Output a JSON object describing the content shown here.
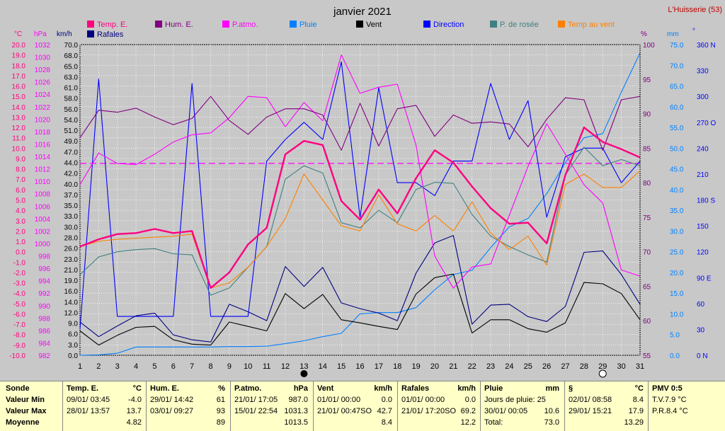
{
  "header": {
    "title": "janvier 2021",
    "station": "L'Huisserie (53)"
  },
  "colors": {
    "temp": "#ff0080",
    "hum": "#800080",
    "patmo": "#ff00ff",
    "pluie": "#0080ff",
    "vent": "#000000",
    "direction": "#0000ff",
    "rosee": "#408080",
    "tvent": "#ff8000",
    "rafales": "#000080",
    "moyenne_line": "#ff00ff",
    "grid": "#ffffff",
    "plot_bg": "#c8c8c8"
  },
  "axes": {
    "temp": {
      "unit": "°C",
      "ylim": [
        -10,
        20
      ],
      "ticks": [
        "20.0",
        "19.0",
        "18.0",
        "17.0",
        "16.0",
        "15.0",
        "14.0",
        "13.0",
        "12.0",
        "11.0",
        "10.0",
        "9.0",
        "8.0",
        "7.0",
        "6.0",
        "5.0",
        "4.0",
        "3.0",
        "2.0",
        "1.0",
        "0.0",
        "-1.0",
        "-2.0",
        "-3.0",
        "-4.0",
        "-5.0",
        "-6.0",
        "-7.0",
        "-8.0",
        "-9.0",
        "-10.0"
      ]
    },
    "hpa": {
      "unit": "hPa",
      "ylim": [
        982,
        1033
      ],
      "ticks": [
        "1032",
        "1030",
        "1028",
        "1026",
        "1024",
        "1022",
        "1020",
        "1018",
        "1016",
        "1014",
        "1012",
        "1010",
        "1008",
        "1006",
        "1004",
        "1002",
        "1000",
        "998",
        "996",
        "994",
        "992",
        "990",
        "988",
        "986",
        "984",
        "982"
      ]
    },
    "kmh": {
      "unit": "km/h",
      "ylim": [
        0,
        70
      ],
      "ticks": [
        "70.0",
        "68.0",
        "65.0",
        "63.0",
        "61.0",
        "58.0",
        "56.0",
        "54.0",
        "51.0",
        "49.0",
        "47.0",
        "44.0",
        "42.0",
        "40.0",
        "37.0",
        "35.0",
        "33.0",
        "30.0",
        "28.0",
        "26.0",
        "23.0",
        "21.0",
        "19.0",
        "16.0",
        "14.0",
        "12.0",
        "9.0",
        "6.0",
        "3.0",
        "0.0"
      ]
    },
    "hum": {
      "unit": "%",
      "ylim": [
        55,
        100
      ],
      "ticks": [
        "100",
        "95",
        "90",
        "85",
        "80",
        "75",
        "70",
        "65",
        "60",
        "55"
      ]
    },
    "mm": {
      "unit": "mm",
      "ylim": [
        0,
        75
      ],
      "ticks": [
        "75.0",
        "70.0",
        "65.0",
        "60.0",
        "55.0",
        "50.0",
        "45.0",
        "40.0",
        "35.0",
        "30.0",
        "25.0",
        "20.0",
        "15.0",
        "10.0",
        "5.0",
        "0.0"
      ]
    },
    "dir": {
      "unit": "°",
      "ylim": [
        0,
        360
      ],
      "ticks": [
        "360 N",
        "330",
        "300",
        "270 O",
        "240",
        "210",
        "180 S",
        "150",
        "120",
        "90 E",
        "60",
        "30",
        "0 N"
      ]
    },
    "x": {
      "ticks": [
        "1",
        "2",
        "3",
        "4",
        "5",
        "6",
        "7",
        "8",
        "9",
        "10",
        "11",
        "12",
        "13",
        "14",
        "15",
        "16",
        "17",
        "18",
        "19",
        "20",
        "21",
        "22",
        "23",
        "24",
        "25",
        "26",
        "27",
        "28",
        "29",
        "30",
        "31"
      ]
    }
  },
  "legend": {
    "temp": "Temp. E.",
    "rafales": "Rafales",
    "hum": "Hum. E.",
    "patmo": "P.atmo.",
    "pluie": "Pluie",
    "vent": "Vent",
    "direction": "Direction",
    "rosee": "P. de rosée",
    "tvent": "Temp au vent"
  },
  "chart_data": {
    "type": "line",
    "title": "janvier 2021",
    "x": [
      1,
      2,
      3,
      4,
      5,
      6,
      7,
      8,
      9,
      10,
      11,
      12,
      13,
      14,
      15,
      16,
      17,
      18,
      19,
      20,
      21,
      22,
      23,
      24,
      25,
      26,
      27,
      28,
      29,
      30,
      31
    ],
    "grid": true,
    "pressure_mean_line_hpa": 1013.5,
    "moon_markers": [
      {
        "day": 13,
        "phase": "new"
      },
      {
        "day": 29,
        "phase": "full"
      }
    ],
    "series": [
      {
        "key": "temp",
        "name": "Temp. E.",
        "axis": "temp",
        "values": [
          0.5,
          1.2,
          1.7,
          1.8,
          2.2,
          1.8,
          2.0,
          -3.5,
          -2.0,
          0.7,
          2.3,
          9.4,
          10.7,
          10.3,
          4.9,
          3.1,
          6.0,
          3.7,
          7.1,
          9.8,
          8.6,
          6.3,
          4.2,
          2.7,
          2.8,
          0.8,
          7.4,
          12.0,
          10.6,
          9.9,
          9.1
        ]
      },
      {
        "key": "tvent",
        "name": "Temp au vent",
        "axis": "temp",
        "values": [
          0.5,
          1.0,
          1.2,
          1.3,
          1.4,
          1.5,
          1.7,
          -3.5,
          -3.0,
          -1.5,
          0.5,
          3.2,
          7.5,
          5.0,
          2.5,
          2.0,
          5.5,
          2.7,
          2.0,
          3.5,
          2.0,
          4.8,
          1.8,
          0.2,
          1.5,
          -1.3,
          6.5,
          7.5,
          6.2,
          6.2,
          7.8
        ]
      },
      {
        "key": "rosee",
        "name": "P. de rosée",
        "axis": "temp",
        "values": [
          -2.2,
          -0.5,
          0.0,
          0.2,
          0.3,
          -0.2,
          -0.3,
          -4.2,
          -3.5,
          -1.5,
          0.5,
          7.0,
          8.3,
          7.6,
          2.8,
          2.3,
          4.0,
          2.8,
          6.0,
          6.7,
          6.6,
          3.6,
          1.5,
          0.5,
          -0.3,
          -1.0,
          7.4,
          10.1,
          8.3,
          8.9,
          8.3
        ]
      },
      {
        "key": "hum",
        "name": "Hum. E.",
        "axis": "hum",
        "values": [
          86.5,
          90.5,
          90.2,
          90.8,
          89.5,
          88.4,
          89.3,
          92.5,
          89.0,
          87.0,
          89.5,
          90.7,
          90.7,
          89.8,
          84.7,
          91.5,
          85.3,
          90.7,
          91.2,
          86.7,
          89.8,
          88.6,
          88.8,
          88.5,
          85.2,
          89.2,
          92.3,
          92.0,
          84.7,
          92.0,
          92.5
        ]
      },
      {
        "key": "patmo",
        "name": "P.atmo.",
        "axis": "hpa",
        "values": [
          1010.0,
          1015.2,
          1013.5,
          1013.3,
          1015.0,
          1017.0,
          1018.2,
          1018.5,
          1021.0,
          1024.5,
          1024.3,
          1019.5,
          1023.5,
          1020.5,
          1031.3,
          1025.0,
          1026.0,
          1026.5,
          1016.5,
          998.3,
          993.0,
          996.5,
          997.0,
          1005.0,
          1013.0,
          1020.0,
          1015.0,
          1010.0,
          1007.0,
          996.0,
          995.0
        ]
      },
      {
        "key": "pluie",
        "name": "Pluie",
        "axis": "mm",
        "values": [
          0.0,
          0.1,
          0.5,
          2.0,
          2.0,
          2.0,
          2.0,
          2.0,
          2.1,
          2.1,
          2.2,
          2.8,
          3.5,
          4.5,
          5.3,
          10.0,
          10.3,
          10.3,
          11.5,
          15.8,
          19.5,
          20.5,
          26.0,
          31.0,
          33.0,
          39.0,
          46.5,
          52.5,
          53.5,
          63.5,
          73.0
        ]
      },
      {
        "key": "vent",
        "name": "Vent",
        "axis": "kmh",
        "values": [
          5.5,
          2.3,
          4.5,
          6.3,
          6.5,
          3.5,
          2.5,
          2.3,
          7.5,
          6.5,
          5.5,
          13.9,
          10.5,
          13.7,
          8.0,
          7.3,
          6.5,
          5.8,
          13.8,
          17.5,
          18.3,
          5.0,
          8.0,
          8.0,
          6.0,
          5.2,
          7.3,
          16.4,
          16.1,
          13.9,
          8.0
        ]
      },
      {
        "key": "rafales",
        "name": "Rafales",
        "axis": "kmh",
        "values": [
          7.5,
          4.2,
          6.6,
          8.9,
          9.5,
          4.6,
          3.5,
          3.0,
          11.5,
          9.8,
          7.8,
          20.0,
          15.5,
          19.8,
          11.8,
          10.5,
          9.5,
          7.8,
          18.5,
          25.3,
          27.0,
          7.0,
          11.3,
          11.5,
          8.7,
          7.6,
          11.0,
          23.2,
          23.5,
          18.2,
          11.5
        ]
      },
      {
        "key": "direction",
        "name": "Direction",
        "axis": "dir",
        "values": [
          30,
          320,
          45,
          45,
          45,
          45,
          315,
          45,
          45,
          45,
          225,
          250,
          270,
          250,
          340,
          160,
          310,
          200,
          200,
          185,
          225,
          225,
          315,
          250,
          295,
          160,
          230,
          240,
          240,
          200,
          225
        ]
      }
    ]
  },
  "footer": {
    "labels": {
      "sonde": "Sonde",
      "min": "Valeur Min",
      "max": "Valeur Max",
      "moy": "Moyenne"
    },
    "temp": {
      "title": "Temp. E.",
      "unit": "°C",
      "min_date": "09/01/ 03:45",
      "min_val": "-4.0",
      "max_date": "28/01/ 13:57",
      "max_val": "13.7",
      "moy": "4.82"
    },
    "hum": {
      "title": "Hum. E.",
      "unit": "%",
      "min_date": "29/01/ 14:42",
      "min_val": "61",
      "max_date": "03/01/ 09:27",
      "max_val": "93",
      "moy": "89"
    },
    "patmo": {
      "title": "P.atmo.",
      "unit": "hPa",
      "min_date": "21/01/ 17:05",
      "min_val": "987.0",
      "max_date": "15/01/ 22:54",
      "max_val": "1031.3",
      "moy": "1013.5"
    },
    "vent": {
      "title": "Vent",
      "unit": "km/h",
      "min_date": "01/01/ 00:00",
      "min_val": "0.0",
      "max_date": "21/01/ 00:47SO",
      "max_val": "42.7",
      "moy": "8.4"
    },
    "rafales": {
      "title": "Rafales",
      "unit": "km/h",
      "min_date": "01/01/ 00:00",
      "min_val": "0.0",
      "max_date": "21/01/ 17:20SO",
      "max_val": "69.2",
      "moy": "12.2"
    },
    "pluie": {
      "title": "Pluie",
      "unit": "mm",
      "l1": "Jours de pluie: 25",
      "l2": "30/01/ 00:05",
      "l2v": "10.6",
      "l3": "Total:",
      "l3v": "73.0"
    },
    "s": {
      "title": "§",
      "unit": "°C",
      "min_date": "02/01/ 08:58",
      "min_val": "8.4",
      "max_date": "29/01/ 15:21",
      "max_val": "17.9",
      "moy": "13.29"
    },
    "pmv": {
      "title": "PMV 0:5",
      "l1": "T.V.7.9 °C",
      "l2": "P.R.8.4 °C"
    }
  }
}
